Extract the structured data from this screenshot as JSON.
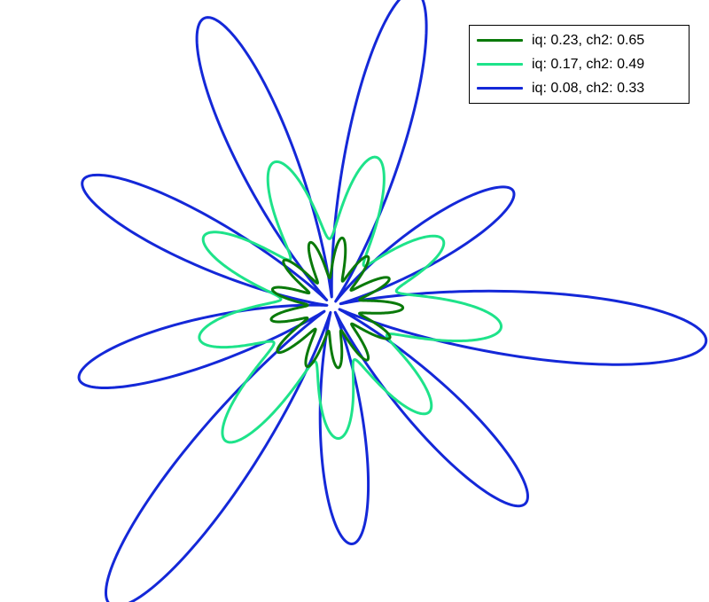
{
  "chart_data": {
    "type": "line",
    "title": "",
    "xlabel": "",
    "ylabel": "",
    "axes_visible": false,
    "grid": false,
    "legend_position": "top-right",
    "series": [
      {
        "name": "iq: 0.23, ch2: 0.65",
        "color": "#0a7a0a",
        "lobes": 13,
        "base_radius": 52,
        "amplitude": 0.42
      },
      {
        "name": "iq: 0.17, ch2: 0.49",
        "color": "#1ee38a",
        "lobes": 9,
        "base_radius": 118,
        "amplitude": 0.42
      },
      {
        "name": "iq: 0.08, ch2: 0.33",
        "color": "#1428d8",
        "lobes": 9,
        "base_radius": 170,
        "amplitude": 0.95
      }
    ]
  }
}
